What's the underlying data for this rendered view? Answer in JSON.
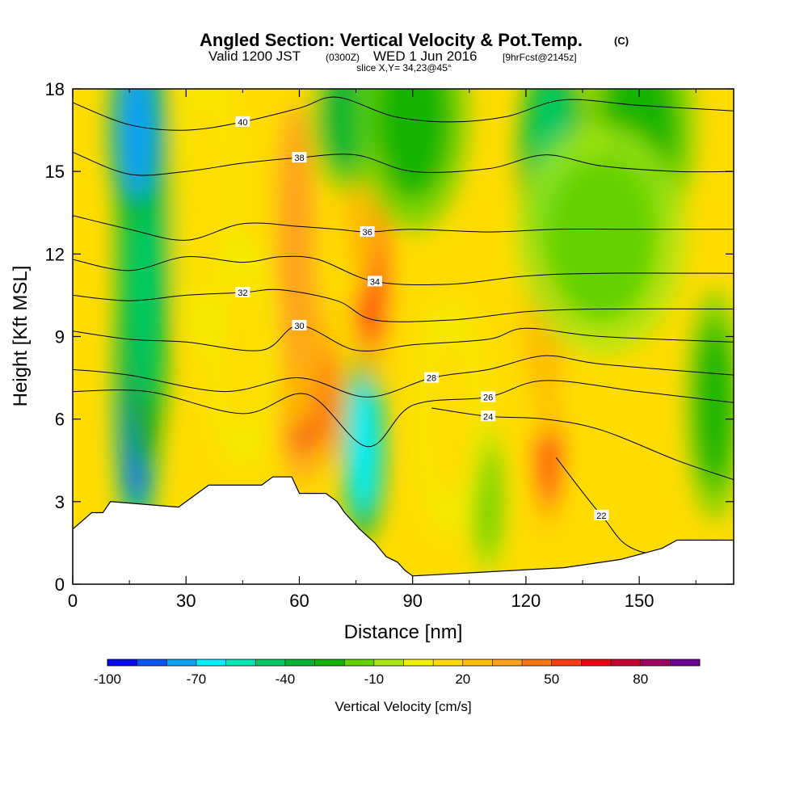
{
  "chart_data": {
    "type": "heatmap",
    "title": "Angled Section: Vertical Velocity & Pot.Temp.",
    "title_unit": "(C)",
    "subtitle": {
      "valid_prefix": "Valid 1200 JST",
      "utc": "(0300Z)",
      "date": "WED 1 Jun 2016",
      "forecast": "[9hrFcst@2145z]"
    },
    "slice_note": "slice X,Y= 34,23@45°",
    "xlabel": "Distance [nm]",
    "ylabel": "Height [Kft MSL]",
    "xlim": [
      0,
      175
    ],
    "ylim": [
      0,
      18
    ],
    "x_ticks": [
      "0",
      "30",
      "60",
      "90",
      "120",
      "150"
    ],
    "y_ticks": [
      "0",
      "3",
      "6",
      "9",
      "12",
      "15",
      "18"
    ],
    "colorbar": {
      "label": "Vertical Velocity [cm/s]",
      "tick_labels": [
        "-100",
        "-70",
        "-40",
        "-10",
        "20",
        "50",
        "80"
      ],
      "levels": [
        -100,
        -90,
        -80,
        -70,
        -60,
        -50,
        -40,
        -30,
        -20,
        -10,
        0,
        10,
        20,
        30,
        40,
        50,
        60,
        70,
        80,
        90
      ],
      "colors": [
        "#0a0af0",
        "#0a55f5",
        "#0aa0f5",
        "#00f0ff",
        "#00e6b4",
        "#00c864",
        "#00b432",
        "#14b400",
        "#64d200",
        "#aae614",
        "#f0f000",
        "#ffdc00",
        "#ffbe00",
        "#ffa01e",
        "#ff7814",
        "#ff3c14",
        "#f00014",
        "#c80032",
        "#a00064",
        "#6e0096"
      ]
    },
    "velocity_centers": [
      {
        "x": 17,
        "y": 6.8,
        "w": -90,
        "rx": 4,
        "ry": 4
      },
      {
        "x": 19,
        "y": 12.5,
        "w": -50,
        "rx": 5,
        "ry": 6
      },
      {
        "x": 17,
        "y": 16.5,
        "w": -80,
        "rx": 5,
        "ry": 2.5
      },
      {
        "x": 61,
        "y": 7.8,
        "w": 62,
        "rx": 5,
        "ry": 3
      },
      {
        "x": 67,
        "y": 6.8,
        "w": 40,
        "rx": 3,
        "ry": 2
      },
      {
        "x": 59,
        "y": 12.5,
        "w": 30,
        "rx": 5,
        "ry": 5
      },
      {
        "x": 77,
        "y": 5.0,
        "w": -70,
        "rx": 4,
        "ry": 2.5
      },
      {
        "x": 79,
        "y": 11.5,
        "w": 50,
        "rx": 4,
        "ry": 3
      },
      {
        "x": 75,
        "y": 14.5,
        "w": 25,
        "rx": 4,
        "ry": 3
      },
      {
        "x": 72,
        "y": 17.0,
        "w": -40,
        "rx": 6,
        "ry": 2
      },
      {
        "x": 90,
        "y": 17.0,
        "w": -30,
        "rx": 10,
        "ry": 3
      },
      {
        "x": 126,
        "y": 5.2,
        "w": 50,
        "rx": 3,
        "ry": 2.5
      },
      {
        "x": 125,
        "y": 9.5,
        "w": 20,
        "rx": 6,
        "ry": 3
      },
      {
        "x": 127,
        "y": 15.5,
        "w": -50,
        "rx": 6,
        "ry": 3
      },
      {
        "x": 150,
        "y": 16.5,
        "w": -30,
        "rx": 10,
        "ry": 3
      },
      {
        "x": 140,
        "y": 12.5,
        "w": -15,
        "rx": 15,
        "ry": 3
      },
      {
        "x": 170,
        "y": 6.5,
        "w": -25,
        "rx": 5,
        "ry": 3
      },
      {
        "x": 45,
        "y": 8.5,
        "w": 15,
        "rx": 6,
        "ry": 3
      },
      {
        "x": 35,
        "y": 14.0,
        "w": 15,
        "rx": 5,
        "ry": 4
      },
      {
        "x": 110,
        "y": 3.0,
        "w": -15,
        "rx": 3,
        "ry": 2
      },
      {
        "x": 100,
        "y": 6.0,
        "w": 15,
        "rx": 6,
        "ry": 3
      }
    ],
    "theta_contours": [
      {
        "level": 40,
        "label": "40",
        "points": [
          [
            0,
            17.5
          ],
          [
            15,
            16.7
          ],
          [
            30,
            16.5
          ],
          [
            45,
            16.8
          ],
          [
            60,
            17.3
          ],
          [
            70,
            17.7
          ],
          [
            85,
            17.0
          ],
          [
            100,
            16.8
          ],
          [
            115,
            17.0
          ],
          [
            130,
            17.6
          ],
          [
            150,
            17.4
          ],
          [
            175,
            17.2
          ]
        ]
      },
      {
        "level": 38,
        "label": "38",
        "points": [
          [
            0,
            15.7
          ],
          [
            15,
            14.9
          ],
          [
            30,
            15.0
          ],
          [
            45,
            15.3
          ],
          [
            60,
            15.5
          ],
          [
            75,
            15.6
          ],
          [
            90,
            15.0
          ],
          [
            110,
            15.1
          ],
          [
            125,
            15.6
          ],
          [
            140,
            15.2
          ],
          [
            160,
            15.0
          ],
          [
            175,
            15.0
          ]
        ]
      },
      {
        "level": 36,
        "label": "36",
        "points": [
          [
            0,
            13.4
          ],
          [
            15,
            12.9
          ],
          [
            30,
            12.5
          ],
          [
            45,
            13.1
          ],
          [
            60,
            13.0
          ],
          [
            70,
            12.9
          ],
          [
            78,
            12.8
          ],
          [
            90,
            12.9
          ],
          [
            110,
            12.8
          ],
          [
            128,
            12.9
          ],
          [
            145,
            12.9
          ],
          [
            175,
            12.9
          ]
        ]
      },
      {
        "level": 34,
        "label": "34",
        "points": [
          [
            0,
            11.8
          ],
          [
            15,
            11.4
          ],
          [
            30,
            11.9
          ],
          [
            45,
            11.7
          ],
          [
            55,
            11.9
          ],
          [
            65,
            11.8
          ],
          [
            80,
            11.0
          ],
          [
            100,
            10.9
          ],
          [
            120,
            11.2
          ],
          [
            140,
            11.3
          ],
          [
            175,
            11.3
          ]
        ]
      },
      {
        "level": 32,
        "label": "32",
        "points": [
          [
            0,
            10.5
          ],
          [
            15,
            10.3
          ],
          [
            30,
            10.5
          ],
          [
            45,
            10.6
          ],
          [
            55,
            10.7
          ],
          [
            70,
            10.3
          ],
          [
            80,
            9.6
          ],
          [
            100,
            9.6
          ],
          [
            120,
            9.9
          ],
          [
            140,
            10.0
          ],
          [
            175,
            10.0
          ]
        ]
      },
      {
        "level": 30,
        "label": "30",
        "points": [
          [
            0,
            9.2
          ],
          [
            15,
            8.9
          ],
          [
            30,
            8.8
          ],
          [
            50,
            8.5
          ],
          [
            60,
            9.4
          ],
          [
            75,
            8.5
          ],
          [
            90,
            8.7
          ],
          [
            110,
            8.9
          ],
          [
            120,
            9.3
          ],
          [
            140,
            9.0
          ],
          [
            175,
            8.8
          ]
        ]
      },
      {
        "level": 28,
        "label": "28",
        "points": [
          [
            0,
            7.8
          ],
          [
            15,
            7.6
          ],
          [
            40,
            7.0
          ],
          [
            60,
            7.5
          ],
          [
            78,
            6.8
          ],
          [
            95,
            7.5
          ],
          [
            110,
            7.8
          ],
          [
            125,
            8.3
          ],
          [
            140,
            8.0
          ],
          [
            175,
            7.6
          ]
        ]
      },
      {
        "level": 26,
        "label": "26",
        "points": [
          [
            0,
            7.0
          ],
          [
            20,
            7.0
          ],
          [
            45,
            6.2
          ],
          [
            62,
            6.9
          ],
          [
            78,
            5.0
          ],
          [
            90,
            6.5
          ],
          [
            110,
            6.8
          ],
          [
            125,
            7.4
          ],
          [
            150,
            7.0
          ],
          [
            175,
            6.6
          ]
        ]
      },
      {
        "level": 24,
        "label": "24",
        "points": [
          [
            95,
            6.4
          ],
          [
            110,
            6.1
          ],
          [
            125,
            6.0
          ],
          [
            140,
            5.6
          ],
          [
            160,
            4.5
          ],
          [
            175,
            3.8
          ]
        ]
      },
      {
        "level": 22,
        "label": "22",
        "points": [
          [
            128,
            4.6
          ],
          [
            140,
            2.5
          ],
          [
            150,
            1.2
          ],
          [
            175,
            0.9
          ]
        ]
      }
    ],
    "terrain": [
      [
        0,
        2.0
      ],
      [
        5,
        2.6
      ],
      [
        8,
        2.6
      ],
      [
        10,
        3.0
      ],
      [
        28,
        2.8
      ],
      [
        32,
        3.2
      ],
      [
        36,
        3.6
      ],
      [
        50,
        3.6
      ],
      [
        53,
        3.9
      ],
      [
        58,
        3.9
      ],
      [
        60,
        3.3
      ],
      [
        67,
        3.3
      ],
      [
        70,
        3.0
      ],
      [
        72,
        2.6
      ],
      [
        76,
        2.0
      ],
      [
        80,
        1.5
      ],
      [
        83,
        1.0
      ],
      [
        86,
        0.8
      ],
      [
        88,
        0.5
      ],
      [
        90,
        0.3
      ],
      [
        130,
        0.6
      ],
      [
        145,
        0.9
      ],
      [
        156,
        1.3
      ],
      [
        160,
        1.6
      ],
      [
        175,
        1.6
      ]
    ]
  }
}
